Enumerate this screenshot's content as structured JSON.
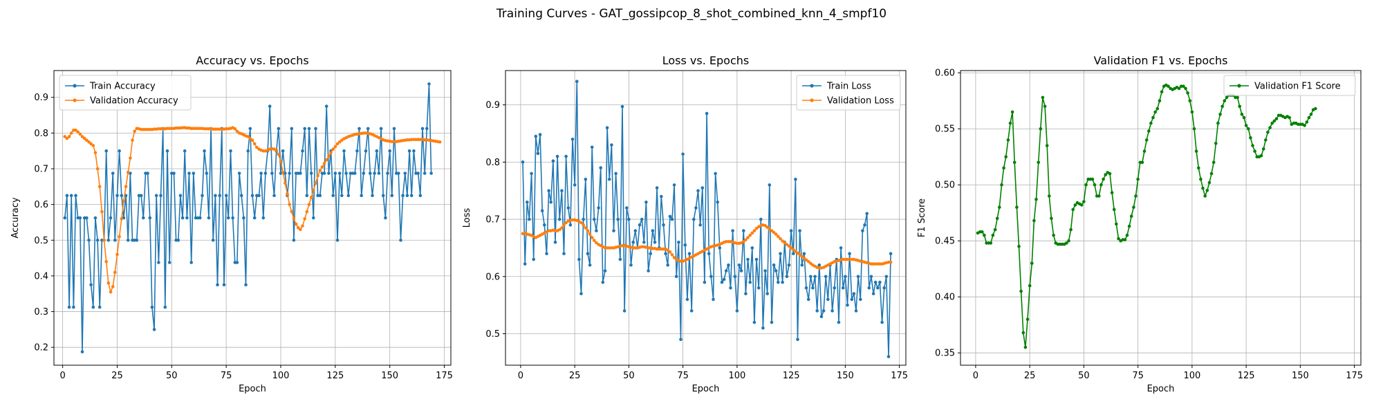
{
  "figure": {
    "suptitle": "Training Curves - GAT_gossipcop_8_shot_combined_knn_4_smpf10"
  },
  "colors": {
    "train": "#1f77b4",
    "validation": "#ff7f0e",
    "f1": "#008000",
    "grid": "#b0b0b0"
  },
  "chart_data": [
    {
      "type": "line",
      "title": "Accuracy vs. Epochs",
      "xlabel": "Epoch",
      "ylabel": "Accuracy",
      "xlim": [
        -4,
        178
      ],
      "ylim": [
        0.15,
        0.975
      ],
      "xticks": [
        0,
        25,
        50,
        75,
        100,
        125,
        150,
        175
      ],
      "yticks": [
        0.2,
        0.3,
        0.4,
        0.5,
        0.6,
        0.7,
        0.8,
        0.9
      ],
      "grid": true,
      "legend_position": "top-left",
      "series": [
        {
          "name": "Train Accuracy",
          "color": "#1f77b4",
          "values": [
            0.5625,
            0.625,
            0.3125,
            0.625,
            0.3125,
            0.625,
            0.5625,
            0.5625,
            0.1875,
            0.5625,
            0.5625,
            0.5,
            0.375,
            0.3125,
            0.5625,
            0.5,
            0.3125,
            0.5,
            0.5,
            0.75,
            0.5,
            0.5625,
            0.6875,
            0.5,
            0.625,
            0.75,
            0.625,
            0.5625,
            0.625,
            0.5,
            0.6875,
            0.5,
            0.5,
            0.5,
            0.625,
            0.625,
            0.5625,
            0.6875,
            0.6875,
            0.5625,
            0.3125,
            0.25,
            0.625,
            0.4375,
            0.625,
            0.8125,
            0.3125,
            0.75,
            0.4375,
            0.6875,
            0.6875,
            0.5,
            0.5,
            0.625,
            0.5625,
            0.75,
            0.5625,
            0.6875,
            0.4375,
            0.6875,
            0.5625,
            0.5625,
            0.5625,
            0.625,
            0.75,
            0.6875,
            0.5625,
            0.8125,
            0.5,
            0.625,
            0.375,
            0.625,
            0.8125,
            0.375,
            0.625,
            0.5625,
            0.75,
            0.5625,
            0.4375,
            0.4375,
            0.6875,
            0.625,
            0.5625,
            0.375,
            0.75,
            0.8125,
            0.625,
            0.5625,
            0.625,
            0.625,
            0.6875,
            0.5625,
            0.6875,
            0.75,
            0.875,
            0.6875,
            0.625,
            0.75,
            0.8125,
            0.6875,
            0.75,
            0.6875,
            0.625,
            0.6875,
            0.8125,
            0.5,
            0.6875,
            0.6875,
            0.6875,
            0.75,
            0.8125,
            0.625,
            0.8125,
            0.6875,
            0.5625,
            0.8125,
            0.625,
            0.625,
            0.6875,
            0.6875,
            0.875,
            0.6875,
            0.75,
            0.625,
            0.6875,
            0.5,
            0.6875,
            0.625,
            0.75,
            0.6875,
            0.625,
            0.6875,
            0.6875,
            0.6875,
            0.75,
            0.8125,
            0.625,
            0.6875,
            0.75,
            0.8125,
            0.6875,
            0.625,
            0.6875,
            0.75,
            0.6875,
            0.8125,
            0.625,
            0.5625,
            0.6875,
            0.75,
            0.625,
            0.8125,
            0.6875,
            0.6875,
            0.5,
            0.625,
            0.6875,
            0.625,
            0.75,
            0.625,
            0.75,
            0.6875,
            0.6875,
            0.625,
            0.8125,
            0.6875,
            0.8125,
            0.9375,
            0.6875
          ]
        },
        {
          "name": "Validation Accuracy",
          "color": "#ff7f0e",
          "values": [
            0.79,
            0.785,
            0.79,
            0.8,
            0.808,
            0.808,
            0.803,
            0.797,
            0.79,
            0.785,
            0.78,
            0.775,
            0.77,
            0.765,
            0.745,
            0.7,
            0.65,
            0.58,
            0.5,
            0.44,
            0.38,
            0.355,
            0.37,
            0.41,
            0.46,
            0.51,
            0.56,
            0.61,
            0.65,
            0.69,
            0.73,
            0.78,
            0.805,
            0.813,
            0.812,
            0.81,
            0.81,
            0.81,
            0.81,
            0.81,
            0.81,
            0.811,
            0.811,
            0.812,
            0.812,
            0.812,
            0.812,
            0.813,
            0.813,
            0.813,
            0.813,
            0.814,
            0.814,
            0.814,
            0.815,
            0.815,
            0.814,
            0.814,
            0.813,
            0.813,
            0.813,
            0.813,
            0.813,
            0.813,
            0.812,
            0.812,
            0.812,
            0.812,
            0.811,
            0.811,
            0.811,
            0.811,
            0.811,
            0.811,
            0.812,
            0.812,
            0.813,
            0.815,
            0.812,
            0.805,
            0.8,
            0.798,
            0.795,
            0.792,
            0.79,
            0.785,
            0.78,
            0.77,
            0.76,
            0.755,
            0.752,
            0.75,
            0.75,
            0.752,
            0.755,
            0.756,
            0.755,
            0.752,
            0.74,
            0.72,
            0.69,
            0.66,
            0.63,
            0.6,
            0.58,
            0.56,
            0.545,
            0.535,
            0.53,
            0.54,
            0.56,
            0.58,
            0.6,
            0.62,
            0.64,
            0.66,
            0.68,
            0.695,
            0.705,
            0.715,
            0.725,
            0.735,
            0.745,
            0.755,
            0.762,
            0.77,
            0.775,
            0.78,
            0.784,
            0.787,
            0.79,
            0.792,
            0.794,
            0.796,
            0.797,
            0.798,
            0.799,
            0.8,
            0.8,
            0.799,
            0.798,
            0.796,
            0.793,
            0.79,
            0.787,
            0.784,
            0.781,
            0.779,
            0.778,
            0.777,
            0.776,
            0.776,
            0.776,
            0.777,
            0.778,
            0.779,
            0.78,
            0.781,
            0.781,
            0.782,
            0.782,
            0.782,
            0.782,
            0.782,
            0.782,
            0.781,
            0.781,
            0.78,
            0.779,
            0.778,
            0.777,
            0.776,
            0.775
          ]
        }
      ]
    },
    {
      "type": "line",
      "title": "Loss vs. Epochs",
      "xlabel": "Epoch",
      "ylabel": "Loss",
      "xlim": [
        -7,
        178
      ],
      "ylim": [
        0.445,
        0.96
      ],
      "xticks": [
        0,
        25,
        50,
        75,
        100,
        125,
        150,
        175
      ],
      "yticks": [
        0.5,
        0.6,
        0.7,
        0.8,
        0.9
      ],
      "grid": true,
      "legend_position": "top-right",
      "series": [
        {
          "name": "Train Loss",
          "color": "#1f77b4",
          "values": [
            0.8,
            0.622,
            0.73,
            0.7,
            0.78,
            0.63,
            0.845,
            0.815,
            0.848,
            0.715,
            0.69,
            0.64,
            0.75,
            0.73,
            0.802,
            0.66,
            0.81,
            0.7,
            0.75,
            0.64,
            0.81,
            0.72,
            0.69,
            0.84,
            0.76,
            0.941,
            0.63,
            0.57,
            0.7,
            0.77,
            0.64,
            0.62,
            0.826,
            0.7,
            0.68,
            0.72,
            0.79,
            0.59,
            0.61,
            0.86,
            0.77,
            0.83,
            0.68,
            0.78,
            0.7,
            0.63,
            0.897,
            0.54,
            0.72,
            0.7,
            0.62,
            0.66,
            0.68,
            0.65,
            0.69,
            0.7,
            0.66,
            0.73,
            0.61,
            0.64,
            0.68,
            0.66,
            0.755,
            0.65,
            0.74,
            0.69,
            0.64,
            0.62,
            0.705,
            0.7,
            0.76,
            0.6,
            0.66,
            0.49,
            0.814,
            0.655,
            0.56,
            0.64,
            0.54,
            0.7,
            0.72,
            0.75,
            0.69,
            0.755,
            0.59,
            0.885,
            0.64,
            0.6,
            0.56,
            0.78,
            0.73,
            0.65,
            0.59,
            0.595,
            0.61,
            0.62,
            0.58,
            0.68,
            0.6,
            0.54,
            0.62,
            0.61,
            0.68,
            0.57,
            0.63,
            0.59,
            0.65,
            0.52,
            0.63,
            0.58,
            0.7,
            0.51,
            0.61,
            0.57,
            0.76,
            0.52,
            0.62,
            0.61,
            0.59,
            0.64,
            0.59,
            0.66,
            0.6,
            0.62,
            0.68,
            0.64,
            0.77,
            0.49,
            0.68,
            0.62,
            0.64,
            0.58,
            0.56,
            0.6,
            0.58,
            0.6,
            0.54,
            0.62,
            0.53,
            0.54,
            0.6,
            0.56,
            0.62,
            0.54,
            0.58,
            0.63,
            0.52,
            0.65,
            0.58,
            0.6,
            0.55,
            0.64,
            0.56,
            0.57,
            0.54,
            0.6,
            0.56,
            0.68,
            0.69,
            0.71,
            0.58,
            0.6,
            0.57,
            0.59,
            0.58,
            0.59,
            0.52,
            0.58,
            0.6,
            0.46,
            0.64
          ]
        },
        {
          "name": "Validation Loss",
          "color": "#ff7f0e",
          "values": [
            0.675,
            0.676,
            0.674,
            0.673,
            0.672,
            0.67,
            0.668,
            0.67,
            0.672,
            0.674,
            0.676,
            0.678,
            0.68,
            0.68,
            0.681,
            0.68,
            0.68,
            0.682,
            0.685,
            0.69,
            0.694,
            0.697,
            0.698,
            0.699,
            0.699,
            0.698,
            0.696,
            0.694,
            0.69,
            0.685,
            0.68,
            0.674,
            0.668,
            0.663,
            0.659,
            0.656,
            0.654,
            0.652,
            0.65,
            0.65,
            0.65,
            0.65,
            0.65,
            0.651,
            0.652,
            0.653,
            0.654,
            0.654,
            0.653,
            0.652,
            0.651,
            0.65,
            0.65,
            0.65,
            0.651,
            0.652,
            0.652,
            0.651,
            0.65,
            0.65,
            0.649,
            0.649,
            0.648,
            0.648,
            0.648,
            0.648,
            0.648,
            0.646,
            0.643,
            0.638,
            0.633,
            0.63,
            0.628,
            0.627,
            0.627,
            0.628,
            0.63,
            0.632,
            0.634,
            0.636,
            0.638,
            0.64,
            0.642,
            0.644,
            0.646,
            0.648,
            0.65,
            0.652,
            0.653,
            0.654,
            0.655,
            0.656,
            0.658,
            0.66,
            0.661,
            0.661,
            0.661,
            0.66,
            0.659,
            0.658,
            0.658,
            0.659,
            0.661,
            0.664,
            0.668,
            0.672,
            0.676,
            0.68,
            0.684,
            0.687,
            0.689,
            0.69,
            0.689,
            0.686,
            0.683,
            0.68,
            0.677,
            0.674,
            0.67,
            0.666,
            0.662,
            0.659,
            0.656,
            0.653,
            0.65,
            0.647,
            0.644,
            0.641,
            0.638,
            0.635,
            0.632,
            0.629,
            0.626,
            0.623,
            0.62,
            0.618,
            0.616,
            0.615,
            0.615,
            0.616,
            0.618,
            0.62,
            0.622,
            0.624,
            0.626,
            0.627,
            0.628,
            0.629,
            0.63,
            0.63,
            0.63,
            0.63,
            0.63,
            0.63,
            0.629,
            0.628,
            0.627,
            0.626,
            0.625,
            0.624,
            0.623,
            0.622,
            0.622,
            0.622,
            0.622,
            0.622,
            0.622,
            0.623,
            0.624,
            0.625,
            0.625
          ]
        }
      ]
    },
    {
      "type": "line",
      "title": "Validation F1 vs. Epochs",
      "xlabel": "Epoch",
      "ylabel": "F1 Score",
      "xlim": [
        -7,
        178
      ],
      "ylim": [
        0.339,
        0.602
      ],
      "xticks": [
        0,
        25,
        50,
        75,
        100,
        125,
        150,
        175
      ],
      "yticks": [
        0.35,
        0.4,
        0.45,
        0.5,
        0.55,
        0.6
      ],
      "grid": true,
      "legend_position": "top-right",
      "series": [
        {
          "name": "Validation F1 Score",
          "color": "#008000",
          "values": [
            0.457,
            0.458,
            0.458,
            0.455,
            0.448,
            0.448,
            0.448,
            0.455,
            0.46,
            0.47,
            0.48,
            0.5,
            0.515,
            0.525,
            0.54,
            0.555,
            0.565,
            0.52,
            0.48,
            0.445,
            0.405,
            0.368,
            0.355,
            0.38,
            0.41,
            0.43,
            0.468,
            0.487,
            0.52,
            0.55,
            0.578,
            0.57,
            0.535,
            0.49,
            0.47,
            0.455,
            0.448,
            0.447,
            0.447,
            0.447,
            0.447,
            0.448,
            0.45,
            0.46,
            0.478,
            0.482,
            0.484,
            0.483,
            0.482,
            0.485,
            0.5,
            0.505,
            0.505,
            0.505,
            0.5,
            0.49,
            0.49,
            0.5,
            0.505,
            0.509,
            0.511,
            0.51,
            0.493,
            0.478,
            0.465,
            0.452,
            0.45,
            0.451,
            0.451,
            0.455,
            0.463,
            0.472,
            0.48,
            0.49,
            0.505,
            0.52,
            0.52,
            0.53,
            0.54,
            0.548,
            0.555,
            0.56,
            0.565,
            0.568,
            0.575,
            0.583,
            0.588,
            0.589,
            0.588,
            0.586,
            0.585,
            0.586,
            0.587,
            0.586,
            0.588,
            0.588,
            0.586,
            0.582,
            0.575,
            0.565,
            0.55,
            0.53,
            0.515,
            0.505,
            0.497,
            0.49,
            0.495,
            0.502,
            0.51,
            0.52,
            0.537,
            0.555,
            0.563,
            0.57,
            0.575,
            0.578,
            0.58,
            0.58,
            0.58,
            0.578,
            0.578,
            0.57,
            0.563,
            0.56,
            0.553,
            0.55,
            0.542,
            0.535,
            0.53,
            0.525,
            0.525,
            0.526,
            0.532,
            0.54,
            0.547,
            0.551,
            0.555,
            0.557,
            0.559,
            0.562,
            0.562,
            0.561,
            0.56,
            0.561,
            0.56,
            0.554,
            0.555,
            0.555,
            0.554,
            0.554,
            0.554,
            0.553,
            0.556,
            0.56,
            0.563,
            0.567,
            0.568
          ]
        }
      ]
    }
  ]
}
